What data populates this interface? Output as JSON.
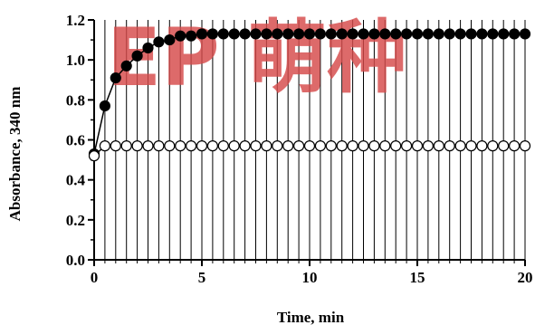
{
  "chart_data": {
    "type": "scatter",
    "xlabel": "Time, min",
    "ylabel": "Absorbance, 340 nm",
    "xlim": [
      0,
      20
    ],
    "ylim": [
      0,
      1.2
    ],
    "x_ticks": [
      0,
      5,
      10,
      15,
      20
    ],
    "x_tick_labels": [
      "0",
      "5",
      "10",
      "15",
      "20"
    ],
    "x_minor_step": 0.5,
    "y_ticks": [
      0,
      0.2,
      0.4,
      0.6,
      0.8,
      1.0,
      1.2
    ],
    "y_tick_labels": [
      "0.0",
      "0.2",
      "0.4",
      "0.6",
      "0.8",
      "1.0",
      "1.2"
    ],
    "grid": "vertical lines at every 0.5 min",
    "legend": "none",
    "series": [
      {
        "marker": "filled-circle",
        "color": "#000000",
        "line": true,
        "x": [
          0,
          0.5,
          1,
          1.5,
          2,
          2.5,
          3,
          3.5,
          4,
          4.5,
          5,
          5.5,
          6,
          6.5,
          7,
          7.5,
          8,
          8.5,
          9,
          9.5,
          10,
          10.5,
          11,
          11.5,
          12,
          12.5,
          13,
          13.5,
          14,
          14.5,
          15,
          15.5,
          16,
          16.5,
          17,
          17.5,
          18,
          18.5,
          19,
          19.5,
          20
        ],
        "y": [
          0.53,
          0.77,
          0.91,
          0.97,
          1.02,
          1.06,
          1.09,
          1.1,
          1.12,
          1.12,
          1.13,
          1.13,
          1.13,
          1.13,
          1.13,
          1.13,
          1.13,
          1.13,
          1.13,
          1.13,
          1.13,
          1.13,
          1.13,
          1.13,
          1.13,
          1.13,
          1.13,
          1.13,
          1.13,
          1.13,
          1.13,
          1.13,
          1.13,
          1.13,
          1.13,
          1.13,
          1.13,
          1.13,
          1.13,
          1.13,
          1.13
        ]
      },
      {
        "marker": "open-circle",
        "color": "#000000",
        "line": true,
        "x": [
          0,
          0.5,
          1,
          1.5,
          2,
          2.5,
          3,
          3.5,
          4,
          4.5,
          5,
          5.5,
          6,
          6.5,
          7,
          7.5,
          8,
          8.5,
          9,
          9.5,
          10,
          10.5,
          11,
          11.5,
          12,
          12.5,
          13,
          13.5,
          14,
          14.5,
          15,
          15.5,
          16,
          16.5,
          17,
          17.5,
          18,
          18.5,
          19,
          19.5,
          20
        ],
        "y": [
          0.52,
          0.57,
          0.57,
          0.57,
          0.57,
          0.57,
          0.57,
          0.57,
          0.57,
          0.57,
          0.57,
          0.57,
          0.57,
          0.57,
          0.57,
          0.57,
          0.57,
          0.57,
          0.57,
          0.57,
          0.57,
          0.57,
          0.57,
          0.57,
          0.57,
          0.57,
          0.57,
          0.57,
          0.57,
          0.57,
          0.57,
          0.57,
          0.57,
          0.57,
          0.57,
          0.57,
          0.57,
          0.57,
          0.57,
          0.57,
          0.57
        ]
      }
    ]
  },
  "watermark": {
    "text": "EP 萌种",
    "color": "#d64a4a"
  }
}
